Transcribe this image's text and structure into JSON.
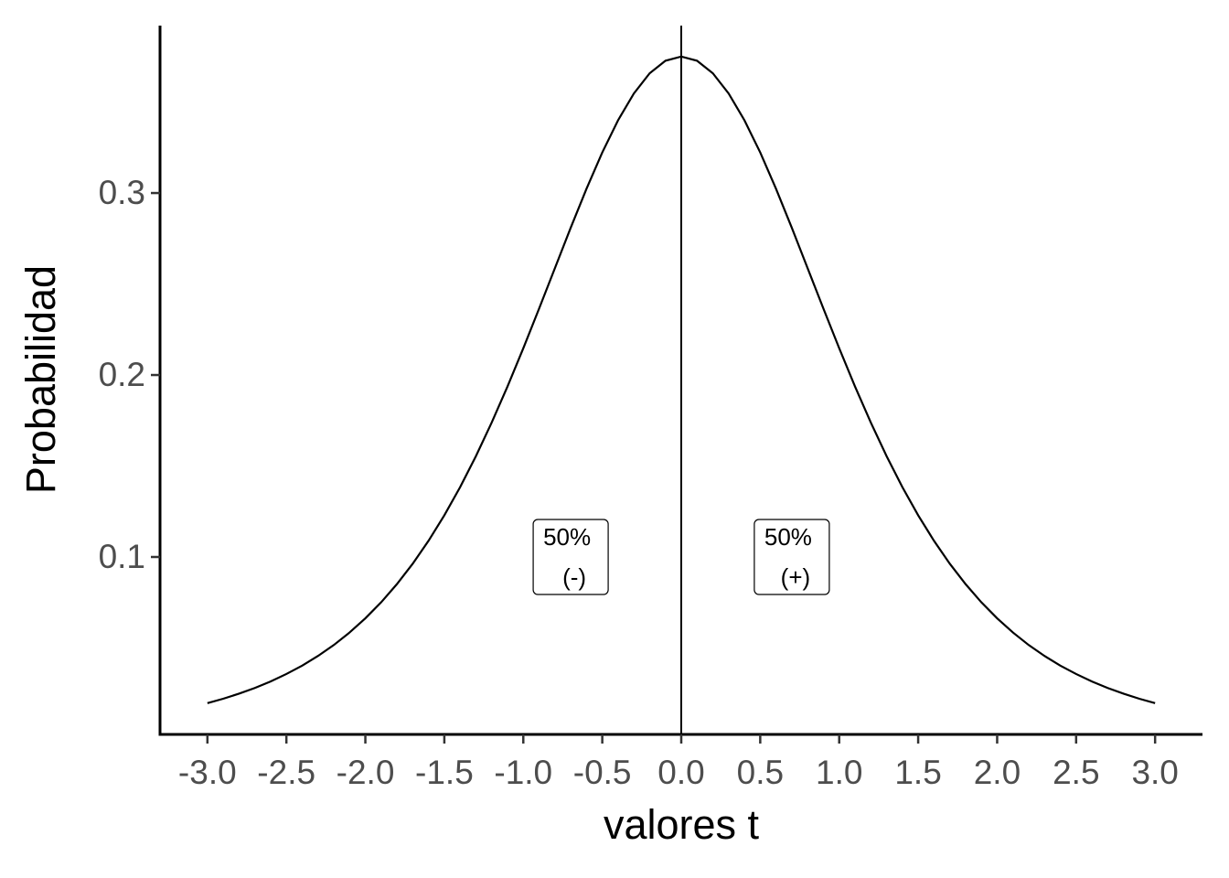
{
  "chart_data": {
    "type": "line",
    "x_label": "valores t",
    "y_label": "Probabilidad",
    "x": [
      -3.0,
      -2.9,
      -2.8,
      -2.7,
      -2.6,
      -2.5,
      -2.4,
      -2.3,
      -2.2,
      -2.1,
      -2.0,
      -1.9,
      -1.8,
      -1.7,
      -1.6,
      -1.5,
      -1.4,
      -1.3,
      -1.2,
      -1.1,
      -1.0,
      -0.9,
      -0.8,
      -0.7,
      -0.6,
      -0.5,
      -0.4,
      -0.3,
      -0.2,
      -0.1,
      0.0,
      0.1,
      0.2,
      0.3,
      0.4,
      0.5,
      0.6,
      0.7,
      0.8,
      0.9,
      1.0,
      1.1,
      1.2,
      1.3,
      1.4,
      1.5,
      1.6,
      1.7,
      1.8,
      1.9,
      2.0,
      2.1,
      2.2,
      2.3,
      2.4,
      2.5,
      2.6,
      2.7,
      2.8,
      2.9,
      3.0
    ],
    "values": [
      0.0197,
      0.0221,
      0.0249,
      0.028,
      0.0316,
      0.0357,
      0.0403,
      0.0456,
      0.0516,
      0.0585,
      0.0663,
      0.0751,
      0.0851,
      0.0963,
      0.1089,
      0.1229,
      0.1384,
      0.1554,
      0.1739,
      0.1937,
      0.2147,
      0.2365,
      0.2587,
      0.2809,
      0.3023,
      0.3223,
      0.34,
      0.3547,
      0.3658,
      0.3727,
      0.375,
      0.3727,
      0.3658,
      0.3547,
      0.34,
      0.3223,
      0.3023,
      0.2809,
      0.2587,
      0.2365,
      0.2147,
      0.1937,
      0.1739,
      0.1554,
      0.1384,
      0.1229,
      0.1089,
      0.0963,
      0.0851,
      0.0751,
      0.0663,
      0.0585,
      0.0516,
      0.0456,
      0.0403,
      0.0357,
      0.0316,
      0.028,
      0.0249,
      0.0221,
      0.0197
    ],
    "color": "#000000",
    "vline": 0,
    "annotations": [
      {
        "lines": [
          "50%",
          "(-)"
        ],
        "x": -0.7,
        "y": 0.1
      },
      {
        "lines": [
          "50%",
          "(+)"
        ],
        "x": 0.7,
        "y": 0.1
      }
    ],
    "xlim": [
      -3.3,
      3.3
    ],
    "ylim": [
      0.0025,
      0.392
    ],
    "xticks": [
      {
        "value": -3,
        "label": "-3.0"
      },
      -2.5,
      {
        "value": -2,
        "label": "-2.0"
      },
      -1.5,
      {
        "value": -1,
        "label": "-1.0"
      },
      -0.5,
      {
        "value": 0,
        "label": "0.0"
      },
      0.5,
      {
        "value": 1,
        "label": "1.0"
      },
      1.5,
      {
        "value": 2,
        "label": "2.0"
      },
      2.5,
      {
        "value": 3,
        "label": "3.0"
      }
    ],
    "yticks": [
      0.1,
      0.2,
      0.3
    ],
    "grid": false
  }
}
